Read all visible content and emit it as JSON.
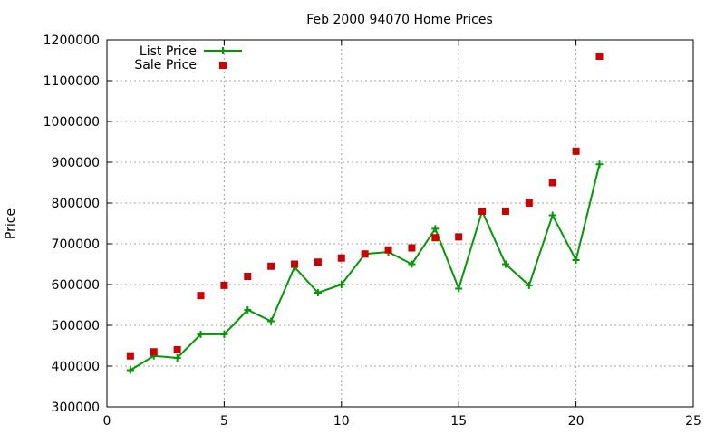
{
  "chart_data": {
    "type": "line",
    "title": "Feb 2000 94070 Home Prices",
    "xlabel": "",
    "ylabel": "Price",
    "xlim": [
      0,
      25
    ],
    "ylim": [
      300000,
      1200000
    ],
    "x_ticks": [
      0,
      5,
      10,
      15,
      20,
      25
    ],
    "y_ticks": [
      300000,
      400000,
      500000,
      600000,
      700000,
      800000,
      900000,
      1000000,
      1100000,
      1200000
    ],
    "grid": true,
    "legend_position": "top-left",
    "series": [
      {
        "name": "List Price",
        "style": "line-with-plus-markers",
        "color": "#009900",
        "points": [
          [
            1,
            390000
          ],
          [
            2,
            425000
          ],
          [
            3,
            420000
          ],
          [
            4,
            478000
          ],
          [
            5,
            478000
          ],
          [
            6,
            538000
          ],
          [
            7,
            510000
          ],
          [
            8,
            643000
          ],
          [
            9,
            580000
          ],
          [
            10,
            600000
          ],
          [
            11,
            675000
          ],
          [
            12,
            680000
          ],
          [
            13,
            650000
          ],
          [
            14,
            737000
          ],
          [
            15,
            590000
          ],
          [
            16,
            780000
          ],
          [
            17,
            650000
          ],
          [
            18,
            598000
          ],
          [
            19,
            770000
          ],
          [
            20,
            660000
          ],
          [
            21,
            895000
          ]
        ]
      },
      {
        "name": "Sale Price",
        "style": "square-markers",
        "color": "#cc0000",
        "points": [
          [
            1,
            425000
          ],
          [
            2,
            435000
          ],
          [
            3,
            440000
          ],
          [
            4,
            573000
          ],
          [
            5,
            598000
          ],
          [
            6,
            620000
          ],
          [
            7,
            645000
          ],
          [
            8,
            650000
          ],
          [
            9,
            655000
          ],
          [
            10,
            665000
          ],
          [
            11,
            675000
          ],
          [
            12,
            685000
          ],
          [
            13,
            690000
          ],
          [
            14,
            715000
          ],
          [
            15,
            717000
          ],
          [
            16,
            780000
          ],
          [
            17,
            780000
          ],
          [
            18,
            800000
          ],
          [
            19,
            850000
          ],
          [
            20,
            927000
          ],
          [
            21,
            1160000
          ]
        ]
      }
    ]
  }
}
